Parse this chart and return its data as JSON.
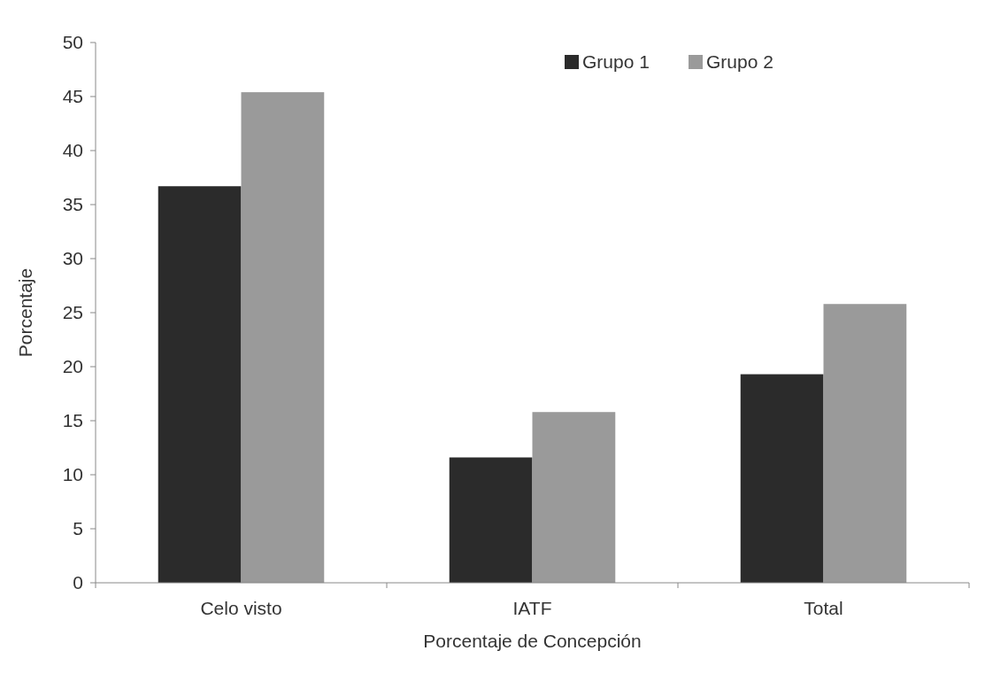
{
  "chart_data": {
    "type": "bar",
    "xlabel": "Porcentaje de Concepción",
    "ylabel": "Porcentaje",
    "categories": [
      "Celo visto",
      "IATF",
      "Total"
    ],
    "series": [
      {
        "name": "Grupo 1",
        "color": "#2b2b2b",
        "values": [
          36.7,
          11.6,
          19.3
        ]
      },
      {
        "name": "Grupo 2",
        "color": "#9a9a9a",
        "values": [
          45.4,
          15.8,
          25.8
        ]
      }
    ],
    "ylim": [
      0,
      50
    ],
    "yticks": [
      0,
      5,
      10,
      15,
      20,
      25,
      30,
      35,
      40,
      45,
      50
    ],
    "grid": false,
    "legend": "top right"
  }
}
